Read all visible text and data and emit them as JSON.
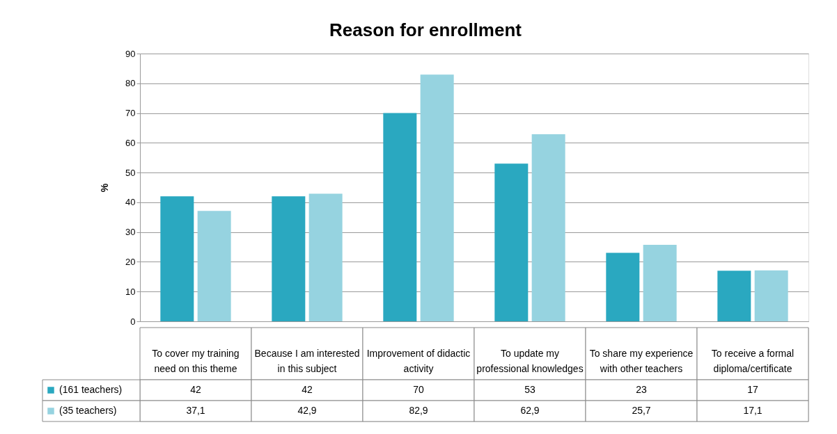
{
  "chart_data": {
    "type": "bar",
    "title": "Reason for enrollment",
    "ylabel": "%",
    "categories": [
      "To cover my training need on this theme",
      "Because I am interested in this subject",
      "Improvement of didactic activity",
      "To update my professional knowledges",
      "To share my experience with other teachers",
      "To receive a formal diploma/certificate"
    ],
    "series": [
      {
        "name": "(161 teachers)",
        "color": "#2aa8c0",
        "values": [
          42,
          42,
          70,
          53,
          23,
          17
        ],
        "value_labels": [
          "42",
          "42",
          "70",
          "53",
          "23",
          "17"
        ]
      },
      {
        "name": "(35 teachers)",
        "color": "#96d3e0",
        "values": [
          37.1,
          42.9,
          82.9,
          62.9,
          25.7,
          17.1
        ],
        "value_labels": [
          "37,1",
          "42,9",
          "82,9",
          "62,9",
          "25,7",
          "17,1"
        ]
      }
    ],
    "ylim": [
      0,
      90
    ],
    "yticks": [
      0,
      10,
      20,
      30,
      40,
      50,
      60,
      70,
      80,
      90
    ],
    "grid": "y",
    "legend": "bottom",
    "data_labels": true
  }
}
